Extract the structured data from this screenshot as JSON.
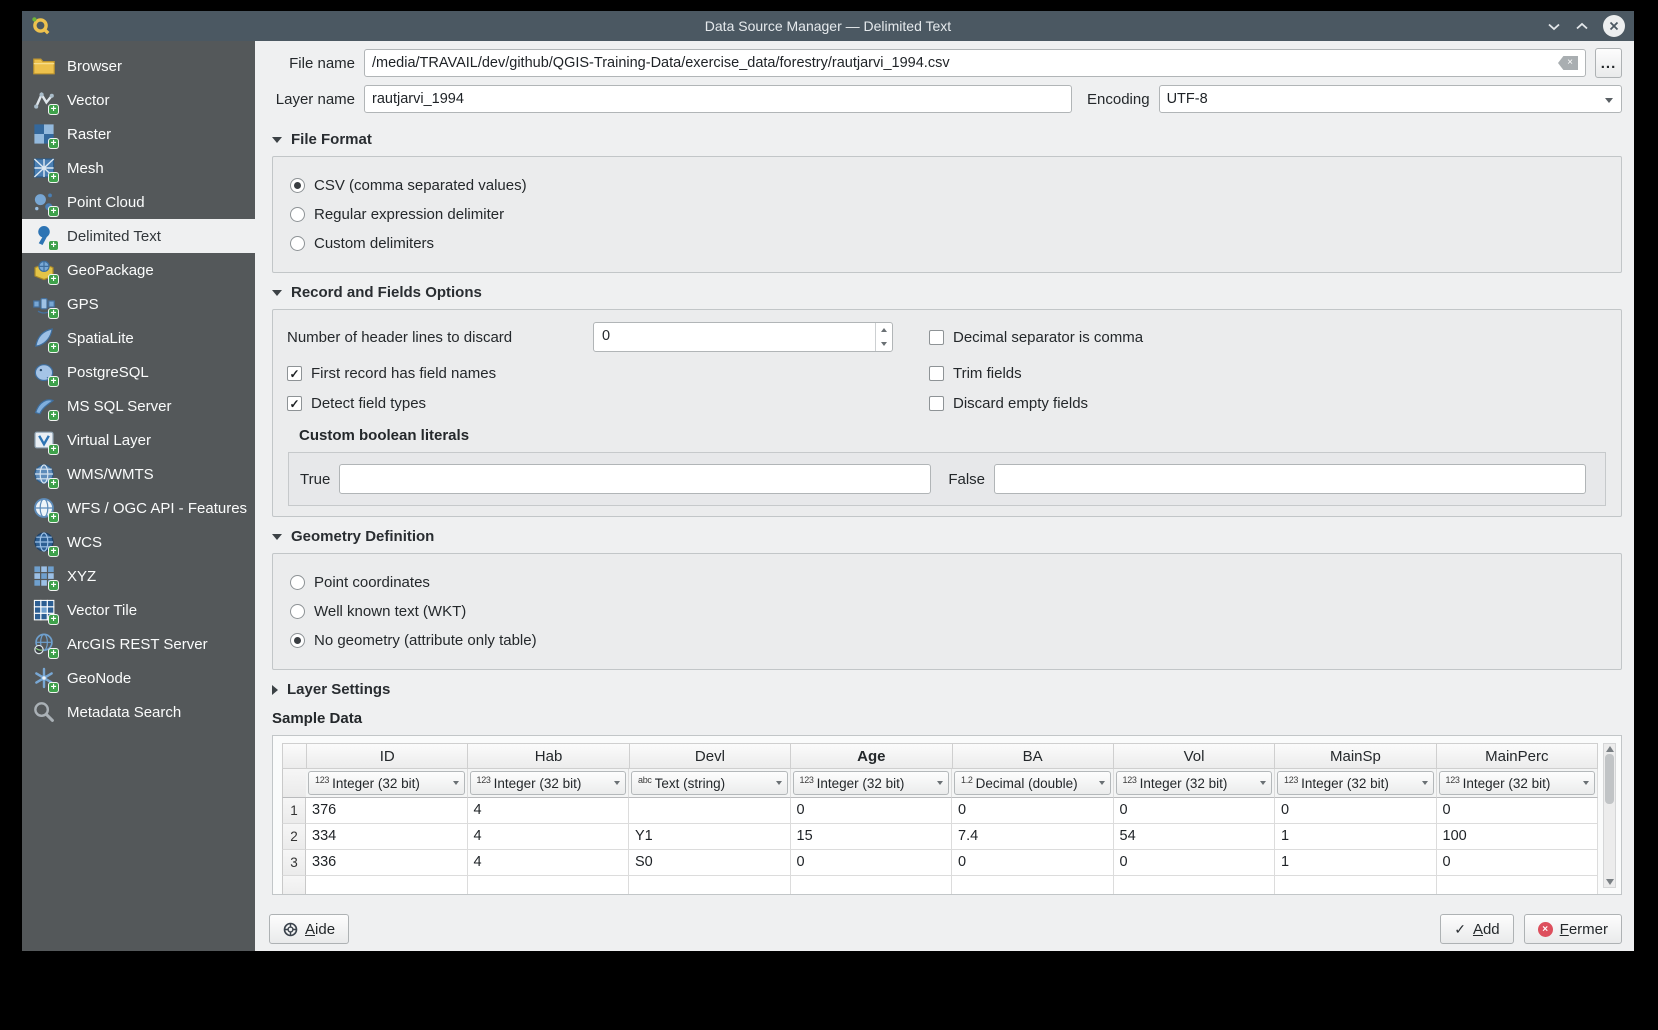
{
  "window": {
    "title": "Data Source Manager — Delimited Text"
  },
  "sidebar": {
    "items": [
      {
        "label": "Browser",
        "icon": "folder-icon",
        "plus": false,
        "selected": false
      },
      {
        "label": "Vector",
        "icon": "vector-icon",
        "plus": true,
        "selected": false
      },
      {
        "label": "Raster",
        "icon": "raster-icon",
        "plus": true,
        "selected": false
      },
      {
        "label": "Mesh",
        "icon": "mesh-icon",
        "plus": true,
        "selected": false
      },
      {
        "label": "Point Cloud",
        "icon": "point-cloud-icon",
        "plus": true,
        "selected": false
      },
      {
        "label": "Delimited Text",
        "icon": "delimited-text-icon",
        "plus": true,
        "selected": true
      },
      {
        "label": "GeoPackage",
        "icon": "geopackage-icon",
        "plus": true,
        "selected": false
      },
      {
        "label": "GPS",
        "icon": "gps-icon",
        "plus": true,
        "selected": false
      },
      {
        "label": "SpatiaLite",
        "icon": "spatialite-icon",
        "plus": true,
        "selected": false
      },
      {
        "label": "PostgreSQL",
        "icon": "postgresql-icon",
        "plus": true,
        "selected": false
      },
      {
        "label": "MS SQL Server",
        "icon": "mssql-icon",
        "plus": true,
        "selected": false
      },
      {
        "label": "Virtual Layer",
        "icon": "virtual-layer-icon",
        "plus": true,
        "selected": false
      },
      {
        "label": "WMS/WMTS",
        "icon": "wms-icon",
        "plus": true,
        "selected": false
      },
      {
        "label": "WFS / OGC API - Features",
        "icon": "wfs-icon",
        "plus": true,
        "selected": false
      },
      {
        "label": "WCS",
        "icon": "wcs-icon",
        "plus": true,
        "selected": false
      },
      {
        "label": "XYZ",
        "icon": "xyz-icon",
        "plus": true,
        "selected": false
      },
      {
        "label": "Vector Tile",
        "icon": "vector-tile-icon",
        "plus": true,
        "selected": false
      },
      {
        "label": "ArcGIS REST Server",
        "icon": "arcgis-icon",
        "plus": true,
        "selected": false
      },
      {
        "label": "GeoNode",
        "icon": "geonode-icon",
        "plus": true,
        "selected": false
      },
      {
        "label": "Metadata Search",
        "icon": "metadata-search-icon",
        "plus": false,
        "selected": false
      }
    ]
  },
  "header": {
    "file_name_label": "File name",
    "file_name_value": "/media/TRAVAIL/dev/github/QGIS-Training-Data/exercise_data/forestry/rautjarvi_1994.csv",
    "browse_label": "...",
    "layer_name_label": "Layer name",
    "layer_name_value": "rautjarvi_1994",
    "encoding_label": "Encoding",
    "encoding_value": "UTF-8"
  },
  "file_format": {
    "title": "File Format",
    "options": [
      {
        "label": "CSV (comma separated values)",
        "selected": true
      },
      {
        "label": "Regular expression delimiter",
        "selected": false
      },
      {
        "label": "Custom delimiters",
        "selected": false
      }
    ]
  },
  "record_options": {
    "title": "Record and Fields Options",
    "header_lines_label": "Number of header lines to discard",
    "header_lines_value": "0",
    "decimal_separator": {
      "label": "Decimal separator is comma",
      "checked": false
    },
    "first_record": {
      "label": "First record has field names",
      "checked": true
    },
    "trim_fields": {
      "label": "Trim fields",
      "checked": false
    },
    "detect_types": {
      "label": "Detect field types",
      "checked": true
    },
    "discard_empty": {
      "label": "Discard empty fields",
      "checked": false
    },
    "custom_bool": {
      "title": "Custom boolean literals",
      "true_label": "True",
      "true_value": "",
      "false_label": "False",
      "false_value": ""
    }
  },
  "geometry": {
    "title": "Geometry Definition",
    "options": [
      {
        "label": "Point coordinates",
        "selected": false
      },
      {
        "label": "Well known text (WKT)",
        "selected": false
      },
      {
        "label": "No geometry (attribute only table)",
        "selected": true
      }
    ]
  },
  "layer_settings": {
    "title": "Layer Settings"
  },
  "sample_data": {
    "title": "Sample Data",
    "columns": [
      {
        "label": "ID"
      },
      {
        "label": "Hab"
      },
      {
        "label": "Devl"
      },
      {
        "label": "Age",
        "bold": true
      },
      {
        "label": "BA"
      },
      {
        "label": "Vol"
      },
      {
        "label": "MainSp"
      },
      {
        "label": "MainPerc"
      }
    ],
    "types": [
      {
        "prefix": "123",
        "label": "Integer (32 bit)"
      },
      {
        "prefix": "123",
        "label": "Integer (32 bit)"
      },
      {
        "prefix": "abc",
        "label": "Text (string)"
      },
      {
        "prefix": "123",
        "label": "Integer (32 bit)"
      },
      {
        "prefix": "1.2",
        "label": "Decimal (double)"
      },
      {
        "prefix": "123",
        "label": "Integer (32 bit)"
      },
      {
        "prefix": "123",
        "label": "Integer (32 bit)"
      },
      {
        "prefix": "123",
        "label": "Integer (32 bit)"
      }
    ],
    "rows": [
      [
        "376",
        "4",
        "",
        "0",
        "0",
        "0",
        "0",
        "0"
      ],
      [
        "334",
        "4",
        "Y1",
        "15",
        "7.4",
        "54",
        "1",
        "100"
      ],
      [
        "336",
        "4",
        "S0",
        "0",
        "0",
        "0",
        "1",
        "0"
      ]
    ]
  },
  "footer": {
    "help": {
      "u": "A",
      "rest": "ide"
    },
    "add": {
      "u": "A",
      "rest": "dd"
    },
    "close": {
      "u": "F",
      "rest": "ermer"
    }
  },
  "colors": {
    "titlebar": "#4b5862",
    "sidebar": "#54585a",
    "content": "#eff0f1",
    "plus_badge_green": "#3ea14b",
    "close_red": "#dd4f5d"
  }
}
